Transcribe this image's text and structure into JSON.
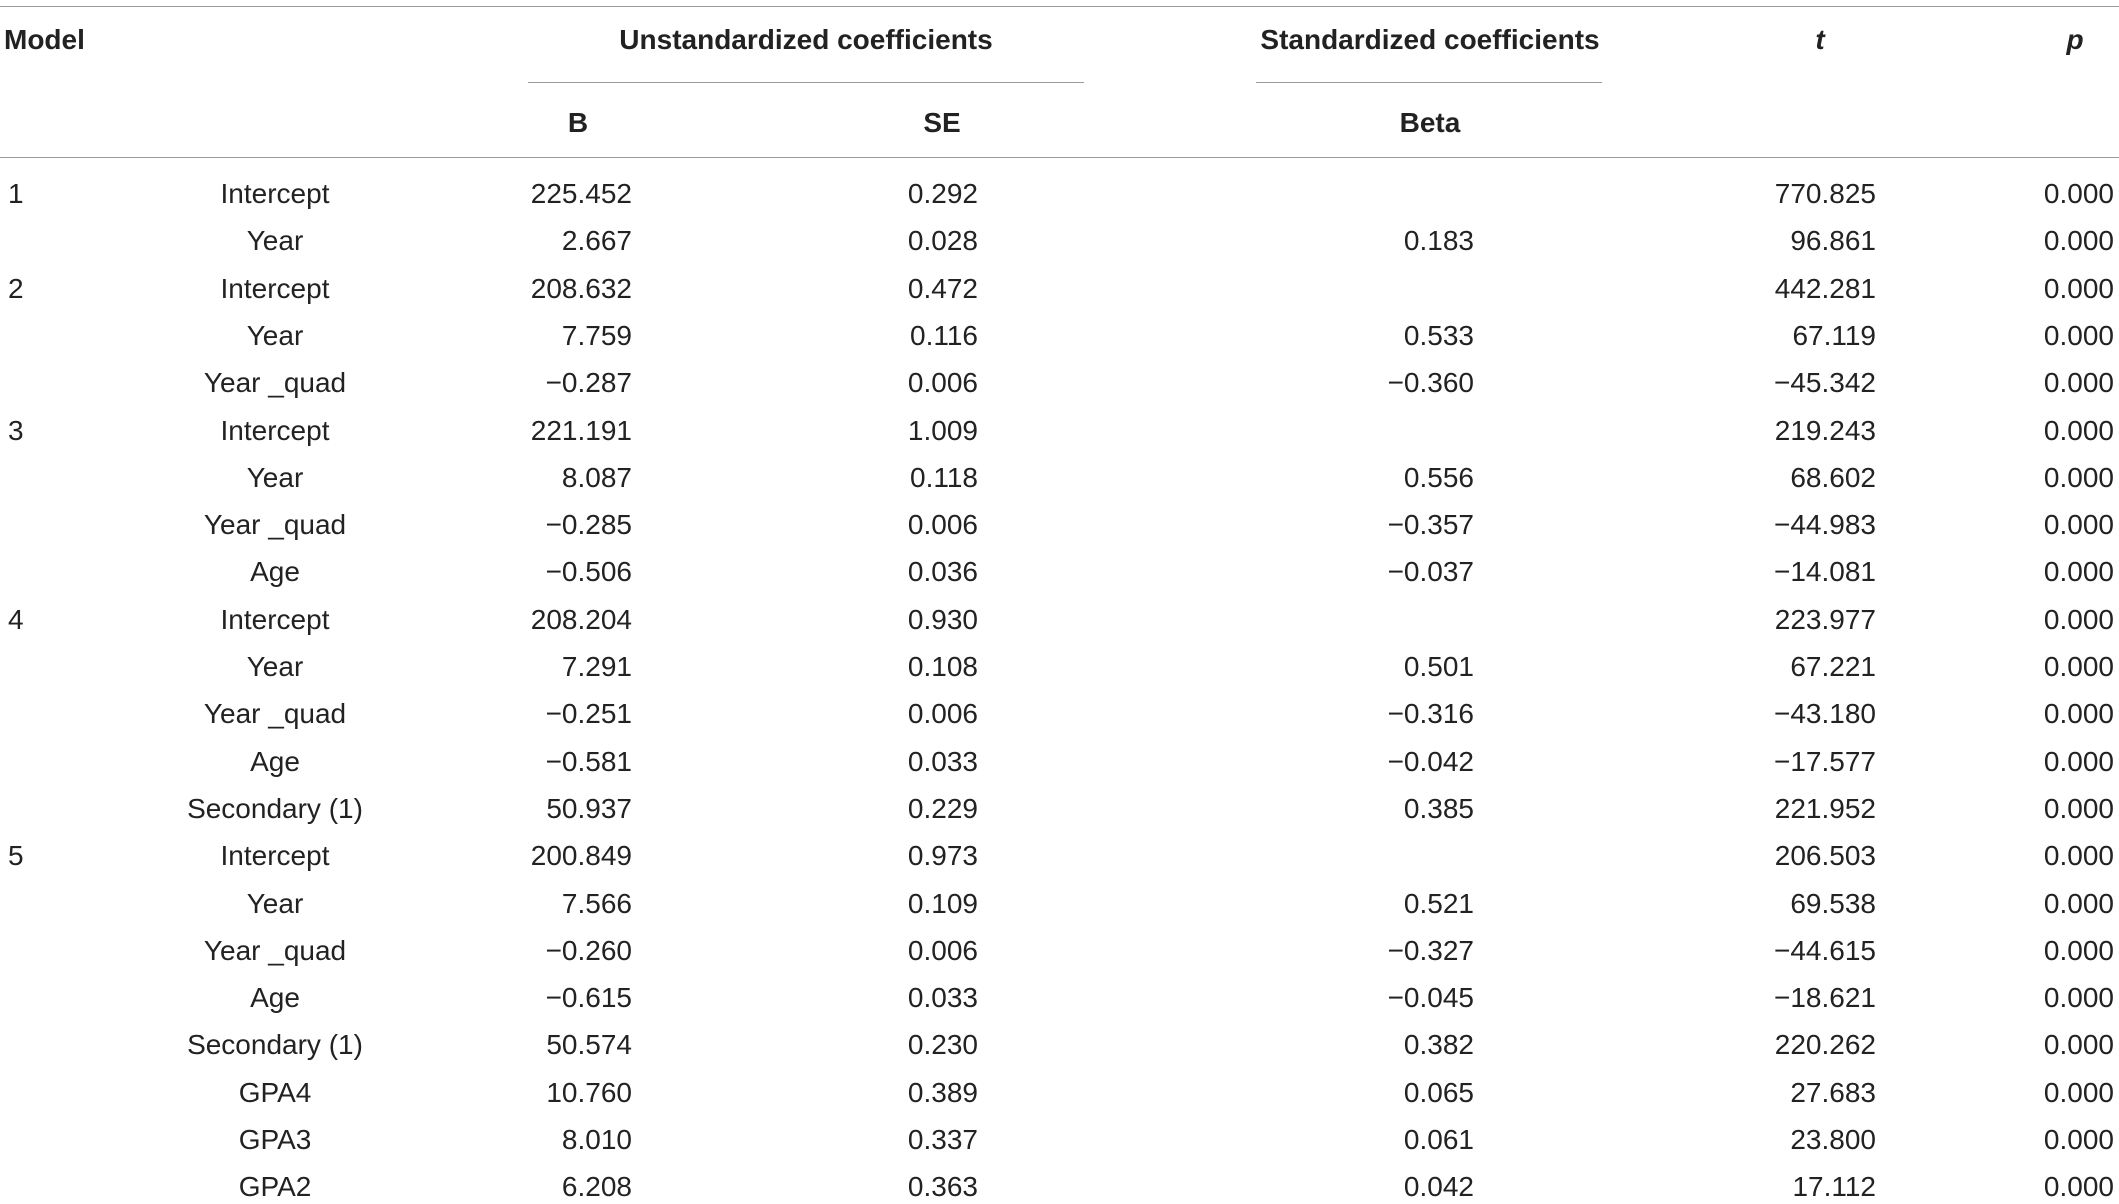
{
  "headers": {
    "model": "Model",
    "unstandardized": "Unstandardized coefficients",
    "standardized": "Standardized coefficients",
    "t": "t",
    "p": "p",
    "b": "B",
    "se": "SE",
    "beta": "Beta"
  },
  "rows": [
    {
      "model": "1",
      "variable": "Intercept",
      "b": "225.452",
      "se": "0.292",
      "beta": "",
      "t": "770.825",
      "p": "0.000"
    },
    {
      "model": "",
      "variable": "Year",
      "b": "2.667",
      "se": "0.028",
      "beta": "0.183",
      "t": "96.861",
      "p": "0.000"
    },
    {
      "model": "2",
      "variable": "Intercept",
      "b": "208.632",
      "se": "0.472",
      "beta": "",
      "t": "442.281",
      "p": "0.000"
    },
    {
      "model": "",
      "variable": "Year",
      "b": "7.759",
      "se": "0.116",
      "beta": "0.533",
      "t": "67.119",
      "p": "0.000"
    },
    {
      "model": "",
      "variable": "Year _quad",
      "b": "−0.287",
      "se": "0.006",
      "beta": "−0.360",
      "t": "−45.342",
      "p": "0.000"
    },
    {
      "model": "3",
      "variable": "Intercept",
      "b": "221.191",
      "se": "1.009",
      "beta": "",
      "t": "219.243",
      "p": "0.000"
    },
    {
      "model": "",
      "variable": "Year",
      "b": "8.087",
      "se": "0.118",
      "beta": "0.556",
      "t": "68.602",
      "p": "0.000"
    },
    {
      "model": "",
      "variable": "Year _quad",
      "b": "−0.285",
      "se": "0.006",
      "beta": "−0.357",
      "t": "−44.983",
      "p": "0.000"
    },
    {
      "model": "",
      "variable": "Age",
      "b": "−0.506",
      "se": "0.036",
      "beta": "−0.037",
      "t": "−14.081",
      "p": "0.000"
    },
    {
      "model": "4",
      "variable": "Intercept",
      "b": "208.204",
      "se": "0.930",
      "beta": "",
      "t": "223.977",
      "p": "0.000"
    },
    {
      "model": "",
      "variable": "Year",
      "b": "7.291",
      "se": "0.108",
      "beta": "0.501",
      "t": "67.221",
      "p": "0.000"
    },
    {
      "model": "",
      "variable": "Year _quad",
      "b": "−0.251",
      "se": "0.006",
      "beta": "−0.316",
      "t": "−43.180",
      "p": "0.000"
    },
    {
      "model": "",
      "variable": "Age",
      "b": "−0.581",
      "se": "0.033",
      "beta": "−0.042",
      "t": "−17.577",
      "p": "0.000"
    },
    {
      "model": "",
      "variable": "Secondary (1)",
      "b": "50.937",
      "se": "0.229",
      "beta": "0.385",
      "t": "221.952",
      "p": "0.000"
    },
    {
      "model": "5",
      "variable": "Intercept",
      "b": "200.849",
      "se": "0.973",
      "beta": "",
      "t": "206.503",
      "p": "0.000"
    },
    {
      "model": "",
      "variable": "Year",
      "b": "7.566",
      "se": "0.109",
      "beta": "0.521",
      "t": "69.538",
      "p": "0.000"
    },
    {
      "model": "",
      "variable": "Year _quad",
      "b": "−0.260",
      "se": "0.006",
      "beta": "−0.327",
      "t": "−44.615",
      "p": "0.000"
    },
    {
      "model": "",
      "variable": "Age",
      "b": "−0.615",
      "se": "0.033",
      "beta": "−0.045",
      "t": "−18.621",
      "p": "0.000"
    },
    {
      "model": "",
      "variable": "Secondary (1)",
      "b": "50.574",
      "se": "0.230",
      "beta": "0.382",
      "t": "220.262",
      "p": "0.000"
    },
    {
      "model": "",
      "variable": "GPA4",
      "b": "10.760",
      "se": "0.389",
      "beta": "0.065",
      "t": "27.683",
      "p": "0.000"
    },
    {
      "model": "",
      "variable": "GPA3",
      "b": "8.010",
      "se": "0.337",
      "beta": "0.061",
      "t": "23.800",
      "p": "0.000"
    },
    {
      "model": "",
      "variable": "GPA2",
      "b": "6.208",
      "se": "0.363",
      "beta": "0.042",
      "t": "17.112",
      "p": "0.000"
    }
  ]
}
